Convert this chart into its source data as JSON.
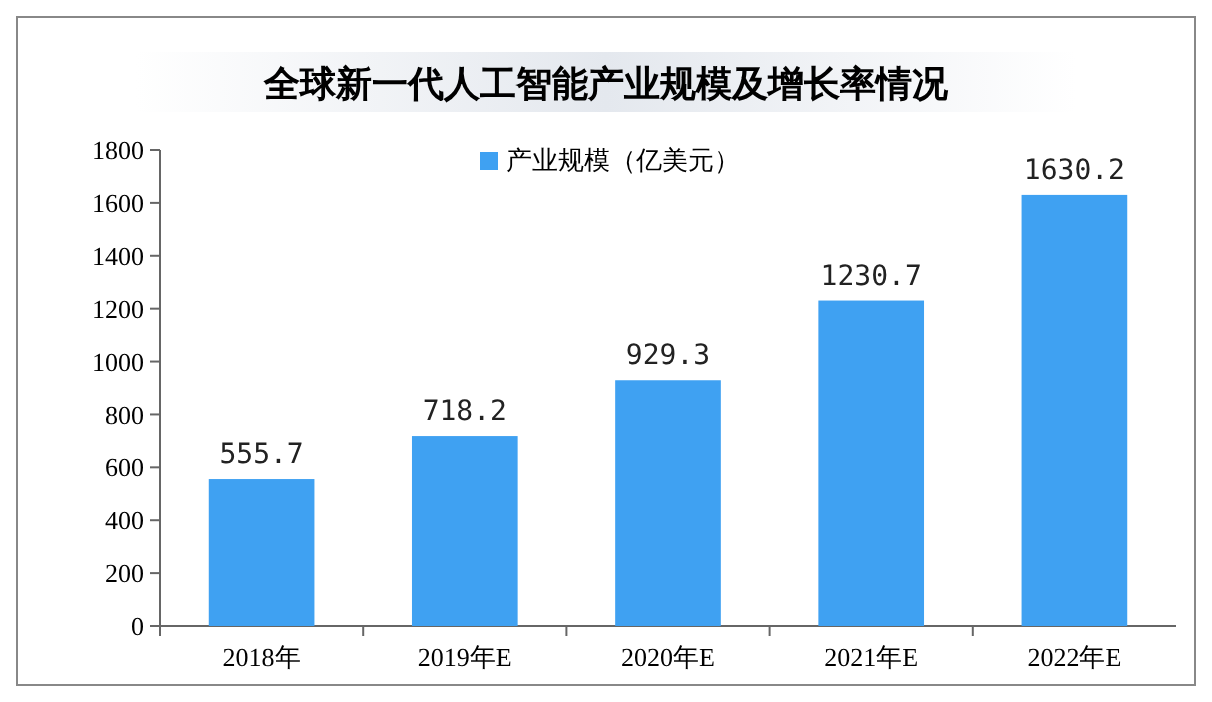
{
  "chart_data": {
    "type": "bar",
    "title": "全球新一代人工智能产业规模及增长率情况",
    "categories": [
      "2018年",
      "2019年E",
      "2020年E",
      "2021年E",
      "2022年E"
    ],
    "series": [
      {
        "name": "产业规模（亿美元）",
        "color": "#3fa1f2",
        "values": [
          555.7,
          718.2,
          929.3,
          1230.7,
          1630.2
        ]
      }
    ],
    "ylim": [
      0,
      1800
    ],
    "yticks": [
      0,
      200,
      400,
      600,
      800,
      1000,
      1200,
      1400,
      1600,
      1800
    ],
    "data_labels": true,
    "legend": "top",
    "grid": false
  }
}
